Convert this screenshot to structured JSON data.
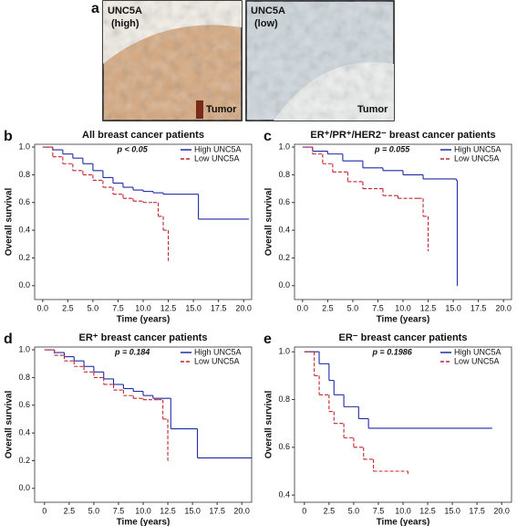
{
  "image_panel": {
    "label": "a",
    "images": [
      {
        "label": "UNC5A",
        "sublabel": "(high)",
        "tissue": "Tumor"
      },
      {
        "label": "UNC5A",
        "sublabel": "(low)",
        "tissue": "Tumor"
      }
    ]
  },
  "chart_data": [
    {
      "type": "step",
      "label": "b",
      "title": "All breast cancer patients",
      "annotation": "p < 0.05",
      "xlabel": "Time (years)",
      "ylabel": "Overall survival",
      "xlim": [
        -0.8,
        20.8
      ],
      "ylim": [
        -0.1,
        1.02
      ],
      "xticks": [
        {
          "value": 0,
          "label": "0.0"
        },
        2.5,
        {
          "value": 5,
          "label": "5.0"
        },
        7.5,
        {
          "value": 10,
          "label": "10.0"
        },
        12.5,
        {
          "value": 15,
          "label": "15.0"
        },
        17.5,
        {
          "value": 20,
          "label": "20.0"
        }
      ],
      "yticks": [
        {
          "value": 0,
          "label": "0.0"
        },
        0.2,
        0.4,
        0.6,
        0.8,
        {
          "value": 1,
          "label": "1.0"
        }
      ],
      "series": [
        {
          "name": "High UNC5A",
          "color": "#1f2aa8",
          "x": [
            0,
            1,
            2,
            3,
            4,
            5,
            6,
            7,
            8,
            9,
            10,
            11,
            12,
            13,
            15.5,
            20.5
          ],
          "values": [
            1,
            0.98,
            0.95,
            0.92,
            0.88,
            0.83,
            0.78,
            0.74,
            0.71,
            0.69,
            0.68,
            0.67,
            0.66,
            0.66,
            0.48,
            0.48
          ]
        },
        {
          "name": "Low UNC5A",
          "color": "#c1272d",
          "x": [
            0,
            1,
            2,
            3,
            4,
            5,
            6,
            7,
            8,
            9,
            10,
            11,
            11.5,
            12,
            12.5
          ],
          "values": [
            1,
            0.93,
            0.88,
            0.83,
            0.8,
            0.76,
            0.71,
            0.66,
            0.63,
            0.61,
            0.6,
            0.6,
            0.5,
            0.4,
            0.18
          ]
        }
      ]
    },
    {
      "type": "step",
      "label": "c",
      "title": "ER⁺/PR⁺/HER2⁻ breast cancer patients",
      "annotation": "p = 0.055",
      "xlabel": "Time (years)",
      "ylabel": "Overall survival",
      "xlim": [
        -0.8,
        20.8
      ],
      "ylim": [
        -0.1,
        1.02
      ],
      "xticks": [
        {
          "value": 0,
          "label": "0.0"
        },
        2.5,
        {
          "value": 5,
          "label": "5.0"
        },
        7.5,
        {
          "value": 10,
          "label": "10.0"
        },
        12.5,
        {
          "value": 15,
          "label": "15.0"
        },
        17.5,
        {
          "value": 20,
          "label": "20.0"
        }
      ],
      "yticks": [
        {
          "value": 0,
          "label": "0.0"
        },
        0.2,
        0.4,
        0.6,
        0.8,
        {
          "value": 1,
          "label": "1.0"
        }
      ],
      "series": [
        {
          "name": "High UNC5A",
          "color": "#1f2aa8",
          "x": [
            0,
            1,
            2.5,
            4,
            6,
            8,
            10,
            12,
            15.3,
            15.4
          ],
          "values": [
            1,
            0.97,
            0.95,
            0.9,
            0.85,
            0.83,
            0.8,
            0.77,
            0.76,
            0
          ]
        },
        {
          "name": "Low UNC5A",
          "color": "#c1272d",
          "x": [
            0,
            1,
            2,
            3,
            4.5,
            6,
            8,
            9.5,
            11.5,
            12,
            12.5
          ],
          "values": [
            1,
            0.95,
            0.88,
            0.82,
            0.75,
            0.7,
            0.65,
            0.63,
            0.63,
            0.5,
            0.25
          ]
        }
      ]
    },
    {
      "type": "step",
      "label": "d",
      "title": "ER⁺ breast cancer patients",
      "annotation": "p = 0.184",
      "xlabel": "Time (years)",
      "ylabel": "Overall survival",
      "xlim": [
        -1,
        21
      ],
      "ylim": [
        -0.1,
        1.02
      ],
      "xticks": [
        0,
        2.5,
        {
          "value": 5,
          "label": "5.0"
        },
        7.5,
        {
          "value": 10,
          "label": "10.0"
        },
        12.5,
        {
          "value": 15,
          "label": "15.0"
        },
        17.5,
        {
          "value": 20,
          "label": "20.0"
        }
      ],
      "yticks": [
        {
          "value": 0,
          "label": "0.0"
        },
        0.2,
        0.4,
        0.6,
        0.8,
        {
          "value": 1,
          "label": "1.0"
        }
      ],
      "series": [
        {
          "name": "High UNC5A",
          "color": "#1f2aa8",
          "x": [
            0,
            1,
            2,
            3,
            4,
            5,
            6,
            7,
            8,
            9,
            10,
            11,
            12.8,
            15.5,
            21
          ],
          "values": [
            1,
            0.98,
            0.95,
            0.92,
            0.88,
            0.84,
            0.79,
            0.75,
            0.72,
            0.7,
            0.67,
            0.65,
            0.43,
            0.22,
            0.22
          ]
        },
        {
          "name": "Low UNC5A",
          "color": "#c1272d",
          "x": [
            0,
            1,
            2,
            3,
            4,
            5,
            6,
            7,
            8,
            9,
            10,
            11.5,
            12,
            12.5
          ],
          "values": [
            1,
            0.96,
            0.92,
            0.88,
            0.84,
            0.8,
            0.75,
            0.71,
            0.67,
            0.65,
            0.64,
            0.64,
            0.5,
            0.2
          ]
        }
      ]
    },
    {
      "type": "step",
      "label": "e",
      "title": "ER⁻ breast cancer patients",
      "annotation": "p = 0.1986",
      "xlabel": "Time (years)",
      "ylabel": "Overall survival",
      "xlim": [
        -1,
        21
      ],
      "ylim": [
        0.37,
        1.02
      ],
      "xticks": [
        0,
        2.5,
        {
          "value": 5,
          "label": "5.0"
        },
        7.5,
        {
          "value": 10,
          "label": "10.0"
        },
        12.5,
        {
          "value": 15,
          "label": "15.0"
        },
        17.5,
        {
          "value": 20,
          "label": "20.0"
        }
      ],
      "yticks": [
        0.4,
        0.6,
        0.8,
        {
          "value": 1,
          "label": "1.0"
        }
      ],
      "series": [
        {
          "name": "High UNC5A",
          "color": "#1f2aa8",
          "x": [
            0,
            1.5,
            2.5,
            3,
            4,
            5.5,
            6.5,
            19
          ],
          "values": [
            1,
            0.95,
            0.88,
            0.82,
            0.77,
            0.72,
            0.68,
            0.68
          ]
        },
        {
          "name": "Low UNC5A",
          "color": "#c1272d",
          "x": [
            0,
            1,
            1.5,
            2.5,
            3,
            4,
            5,
            6,
            7,
            10.5
          ],
          "values": [
            1,
            0.9,
            0.82,
            0.75,
            0.7,
            0.64,
            0.6,
            0.55,
            0.5,
            0.49
          ]
        }
      ]
    }
  ]
}
